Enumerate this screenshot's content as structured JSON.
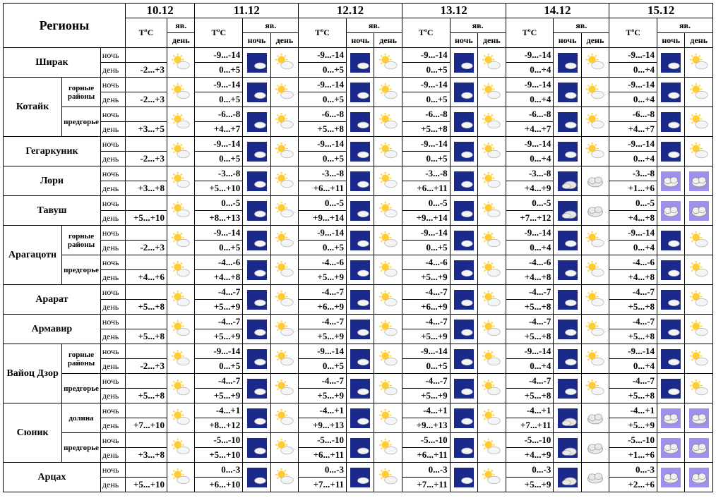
{
  "header": {
    "regions": "Регионы",
    "dates": [
      "10.12",
      "11.12",
      "12.12",
      "13.12",
      "14.12",
      "15.12"
    ],
    "tc": "ТºС",
    "phen": "яв.",
    "night": "ночь",
    "day": "день"
  },
  "icons": {
    "sun": "partly-sunny",
    "moon": "moon-cloud",
    "cloud_day": "cloud-day",
    "cloud_night": "cloud-night"
  },
  "colors": {
    "night_bg": "#1b2a8a",
    "cloud_grey": "#f0f0f0",
    "cloud_violet": "#b0a0ff",
    "sun_yellow": "#ffcc33",
    "moon_yellow": "#ffd84d"
  },
  "rows": [
    {
      "region": "Ширак",
      "subs": [
        {
          "name": null,
          "d1": {
            "n": "-2...+3",
            "icon": "sun"
          },
          "d2": {
            "n": "-9...-14",
            "d": "0...+5",
            "ni": "moon",
            "di": "sun"
          },
          "d3": {
            "n": "-9...-14",
            "d": "0...+5",
            "ni": "moon",
            "di": "sun"
          },
          "d4": {
            "n": "-9...-14",
            "d": "0...+5",
            "ni": "moon",
            "di": "sun"
          },
          "d5": {
            "n": "-9...-14",
            "d": "0...+4",
            "ni": "moon",
            "di": "sun"
          },
          "d6": {
            "n": "-9...-14",
            "d": "0...+4",
            "ni": "moon",
            "di": "sun"
          }
        }
      ]
    },
    {
      "region": "Котайк",
      "subs": [
        {
          "name": "горные районы",
          "d1": {
            "n": "-2...+3",
            "icon": "sun"
          },
          "d2": {
            "n": "-9...-14",
            "d": "0...+5",
            "ni": "moon",
            "di": "sun"
          },
          "d3": {
            "n": "-9...-14",
            "d": "0...+5",
            "ni": "moon",
            "di": "sun"
          },
          "d4": {
            "n": "-9...-14",
            "d": "0...+5",
            "ni": "moon",
            "di": "sun"
          },
          "d5": {
            "n": "-9...-14",
            "d": "0...+4",
            "ni": "moon",
            "di": "sun"
          },
          "d6": {
            "n": "-9...-14",
            "d": "0...+4",
            "ni": "moon",
            "di": "sun"
          }
        },
        {
          "name": "предгорье",
          "d1": {
            "n": "+3...+5",
            "icon": "sun"
          },
          "d2": {
            "n": "-6...-8",
            "d": "+4...+7",
            "ni": "moon",
            "di": "sun"
          },
          "d3": {
            "n": "-6...-8",
            "d": "+5...+8",
            "ni": "moon",
            "di": "sun"
          },
          "d4": {
            "n": "-6...-8",
            "d": "+5...+8",
            "ni": "moon",
            "di": "sun"
          },
          "d5": {
            "n": "-6...-8",
            "d": "+4...+7",
            "ni": "moon",
            "di": "sun"
          },
          "d6": {
            "n": "-6...-8",
            "d": "+4...+7",
            "ni": "moon",
            "di": "sun"
          }
        }
      ]
    },
    {
      "region": "Гегаркуник",
      "subs": [
        {
          "name": null,
          "d1": {
            "n": "-2...+3",
            "icon": "sun"
          },
          "d2": {
            "n": "-9...-14",
            "d": "0...+5",
            "ni": "moon",
            "di": "sun"
          },
          "d3": {
            "n": "-9...-14",
            "d": "0...+5",
            "ni": "moon",
            "di": "sun"
          },
          "d4": {
            "n": "-9...-14",
            "d": "0...+5",
            "ni": "moon",
            "di": "sun"
          },
          "d5": {
            "n": "-9...-14",
            "d": "0...+4",
            "ni": "moon",
            "di": "sun"
          },
          "d6": {
            "n": "-9...-14",
            "d": "0...+4",
            "ni": "moon",
            "di": "sun"
          }
        }
      ]
    },
    {
      "region": "Лори",
      "subs": [
        {
          "name": null,
          "d1": {
            "n": "+3...+8",
            "icon": "sun"
          },
          "d2": {
            "n": "-3...-8",
            "d": "+5...+10",
            "ni": "moon",
            "di": "sun"
          },
          "d3": {
            "n": "-3...-8",
            "d": "+6...+11",
            "ni": "moon",
            "di": "sun"
          },
          "d4": {
            "n": "-3...-8",
            "d": "+6...+11",
            "ni": "moon",
            "di": "sun"
          },
          "d5": {
            "n": "-3...-8",
            "d": "+4...+9",
            "ni": "moon_c",
            "di": "cloud_d"
          },
          "d6": {
            "n": "-3...-8",
            "d": "+1...+6",
            "ni": "cloud_n",
            "di": "cloud_n"
          }
        }
      ]
    },
    {
      "region": "Тавуш",
      "subs": [
        {
          "name": null,
          "d1": {
            "n": "+5...+10",
            "icon": "sun"
          },
          "d2": {
            "n": "0...-5",
            "d": "+8...+13",
            "ni": "moon",
            "di": "sun"
          },
          "d3": {
            "n": "0...-5",
            "d": "+9...+14",
            "ni": "moon",
            "di": "sun"
          },
          "d4": {
            "n": "0...-5",
            "d": "+9...+14",
            "ni": "moon",
            "di": "sun"
          },
          "d5": {
            "n": "0...-5",
            "d": "+7...+12",
            "ni": "moon_c",
            "di": "cloud_d"
          },
          "d6": {
            "n": "0...-5",
            "d": "+4...+8",
            "ni": "cloud_n",
            "di": "cloud_n"
          }
        }
      ]
    },
    {
      "region": "Арагацотн",
      "subs": [
        {
          "name": "горные районы",
          "d1": {
            "n": "-2...+3",
            "icon": "sun"
          },
          "d2": {
            "n": "-9...-14",
            "d": "0...+5",
            "ni": "moon",
            "di": "sun"
          },
          "d3": {
            "n": "-9...-14",
            "d": "0...+5",
            "ni": "moon",
            "di": "sun"
          },
          "d4": {
            "n": "-9...-14",
            "d": "0...+5",
            "ni": "moon",
            "di": "sun"
          },
          "d5": {
            "n": "-9...-14",
            "d": "0...+4",
            "ni": "moon",
            "di": "sun"
          },
          "d6": {
            "n": "-9...-14",
            "d": "0...+4",
            "ni": "moon",
            "di": "sun"
          }
        },
        {
          "name": "предгорье",
          "d1": {
            "n": "+4...+6",
            "icon": "sun"
          },
          "d2": {
            "n": "-4...-6",
            "d": "+4...+8",
            "ni": "moon",
            "di": "sun"
          },
          "d3": {
            "n": "-4...-6",
            "d": "+5...+9",
            "ni": "moon",
            "di": "sun"
          },
          "d4": {
            "n": "-4...-6",
            "d": "+5...+9",
            "ni": "moon",
            "di": "sun"
          },
          "d5": {
            "n": "-4...-6",
            "d": "+4...+8",
            "ni": "moon",
            "di": "sun"
          },
          "d6": {
            "n": "-4...-6",
            "d": "+4...+8",
            "ni": "moon",
            "di": "sun"
          }
        }
      ]
    },
    {
      "region": "Арарат",
      "subs": [
        {
          "name": null,
          "d1": {
            "n": "+5...+8",
            "icon": "sun"
          },
          "d2": {
            "n": "-4...-7",
            "d": "+5...+9",
            "ni": "moon",
            "di": "sun"
          },
          "d3": {
            "n": "-4...-7",
            "d": "+6...+9",
            "ni": "moon",
            "di": "sun"
          },
          "d4": {
            "n": "-4...-7",
            "d": "+6...+9",
            "ni": "moon",
            "di": "sun"
          },
          "d5": {
            "n": "-4...-7",
            "d": "+5...+8",
            "ni": "moon",
            "di": "sun"
          },
          "d6": {
            "n": "-4...-7",
            "d": "+5...+8",
            "ni": "moon",
            "di": "sun"
          }
        }
      ]
    },
    {
      "region": "Армавир",
      "subs": [
        {
          "name": null,
          "d1": {
            "n": "+5...+8",
            "icon": "sun"
          },
          "d2": {
            "n": "-4...-7",
            "d": "+5...+9",
            "ni": "moon",
            "di": "sun"
          },
          "d3": {
            "n": "-4...-7",
            "d": "+5...+9",
            "ni": "moon",
            "di": "sun"
          },
          "d4": {
            "n": "-4...-7",
            "d": "+5...+9",
            "ni": "moon",
            "di": "sun"
          },
          "d5": {
            "n": "-4...-7",
            "d": "+5...+8",
            "ni": "moon",
            "di": "sun"
          },
          "d6": {
            "n": "-4...-7",
            "d": "+5...+8",
            "ni": "moon",
            "di": "sun"
          }
        }
      ]
    },
    {
      "region": "Вайоц Дзор",
      "subs": [
        {
          "name": "горные районы",
          "d1": {
            "n": "-2...+3",
            "icon": "sun"
          },
          "d2": {
            "n": "-9...-14",
            "d": "0...+5",
            "ni": "moon",
            "di": "sun"
          },
          "d3": {
            "n": "-9...-14",
            "d": "0...+5",
            "ni": "moon",
            "di": "sun"
          },
          "d4": {
            "n": "-9...-14",
            "d": "0...+5",
            "ni": "moon",
            "di": "sun"
          },
          "d5": {
            "n": "-9...-14",
            "d": "0...+4",
            "ni": "moon",
            "di": "sun"
          },
          "d6": {
            "n": "-9...-14",
            "d": "0...+4",
            "ni": "moon",
            "di": "sun"
          }
        },
        {
          "name": "предгорье",
          "d1": {
            "n": "+5...+8",
            "icon": "sun"
          },
          "d2": {
            "n": "-4...-7",
            "d": "+5...+9",
            "ni": "moon",
            "di": "sun"
          },
          "d3": {
            "n": "-4...-7",
            "d": "+5...+9",
            "ni": "moon",
            "di": "sun"
          },
          "d4": {
            "n": "-4...-7",
            "d": "+5...+9",
            "ni": "moon",
            "di": "sun"
          },
          "d5": {
            "n": "-4...-7",
            "d": "+5...+8",
            "ni": "moon",
            "di": "sun"
          },
          "d6": {
            "n": "-4...-7",
            "d": "+5...+8",
            "ni": "moon",
            "di": "sun"
          }
        }
      ]
    },
    {
      "region": "Сюник",
      "subs": [
        {
          "name": "долина",
          "d1": {
            "n": "+7...+10",
            "icon": "sun"
          },
          "d2": {
            "n": "-4...+1",
            "d": "+8...+12",
            "ni": "moon",
            "di": "sun"
          },
          "d3": {
            "n": "-4...+1",
            "d": "+9...+13",
            "ni": "moon",
            "di": "sun"
          },
          "d4": {
            "n": "-4...+1",
            "d": "+9...+13",
            "ni": "moon",
            "di": "sun"
          },
          "d5": {
            "n": "-4...+1",
            "d": "+7...+11",
            "ni": "moon_c",
            "di": "cloud_d"
          },
          "d6": {
            "n": "-4...+1",
            "d": "+5...+9",
            "ni": "cloud_n",
            "di": "cloud_n"
          }
        },
        {
          "name": "предгорье",
          "d1": {
            "n": "+3...+8",
            "icon": "sun"
          },
          "d2": {
            "n": "-5...-10",
            "d": "+5...+10",
            "ni": "moon",
            "di": "sun"
          },
          "d3": {
            "n": "-5...-10",
            "d": "+6...+11",
            "ni": "moon",
            "di": "sun"
          },
          "d4": {
            "n": "-5...-10",
            "d": "+6...+11",
            "ni": "moon",
            "di": "sun"
          },
          "d5": {
            "n": "-5...-10",
            "d": "+4...+9",
            "ni": "moon_c",
            "di": "cloud_d"
          },
          "d6": {
            "n": "-5...-10",
            "d": "+1...+6",
            "ni": "cloud_n",
            "di": "cloud_n"
          }
        }
      ]
    },
    {
      "region": "Арцах",
      "subs": [
        {
          "name": null,
          "d1": {
            "n": "+5...+10",
            "icon": "sun"
          },
          "d2": {
            "n": "0...-3",
            "d": "+6...+10",
            "ni": "moon",
            "di": "sun"
          },
          "d3": {
            "n": "0...-3",
            "d": "+7...+11",
            "ni": "moon",
            "di": "sun"
          },
          "d4": {
            "n": "0...-3",
            "d": "+7...+11",
            "ni": "moon",
            "di": "sun"
          },
          "d5": {
            "n": "0...-3",
            "d": "+5...+9",
            "ni": "moon_c",
            "di": "cloud_d"
          },
          "d6": {
            "n": "0...-3",
            "d": "+2...+6",
            "ni": "cloud_n",
            "di": "cloud_n"
          }
        }
      ]
    }
  ]
}
